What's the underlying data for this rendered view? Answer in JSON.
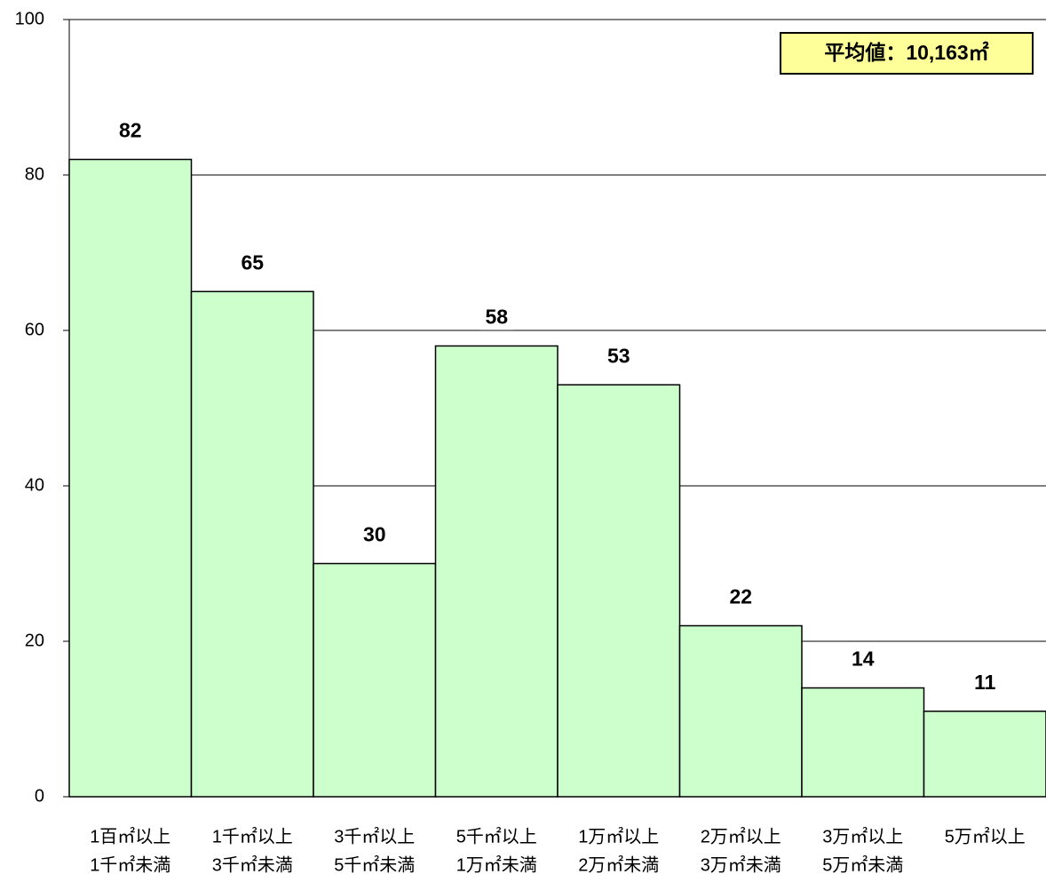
{
  "chart_data": {
    "type": "bar",
    "categories": [
      [
        "1百㎡以上",
        "1千㎡未満"
      ],
      [
        "1千㎡以上",
        "3千㎡未満"
      ],
      [
        "3千㎡以上",
        "5千㎡未満"
      ],
      [
        "5千㎡以上",
        "1万㎡未満"
      ],
      [
        "1万㎡以上",
        "2万㎡未満"
      ],
      [
        "2万㎡以上",
        "3万㎡未満"
      ],
      [
        "3万㎡以上",
        "5万㎡未満"
      ],
      [
        "5万㎡以上"
      ]
    ],
    "values": [
      82,
      65,
      30,
      58,
      53,
      22,
      14,
      11
    ],
    "color": "#ccffcc",
    "ylim": [
      0,
      100
    ],
    "yticks": [
      0,
      20,
      40,
      60,
      80,
      100
    ],
    "grid": true,
    "annotation": "平均値：10,163㎡"
  }
}
